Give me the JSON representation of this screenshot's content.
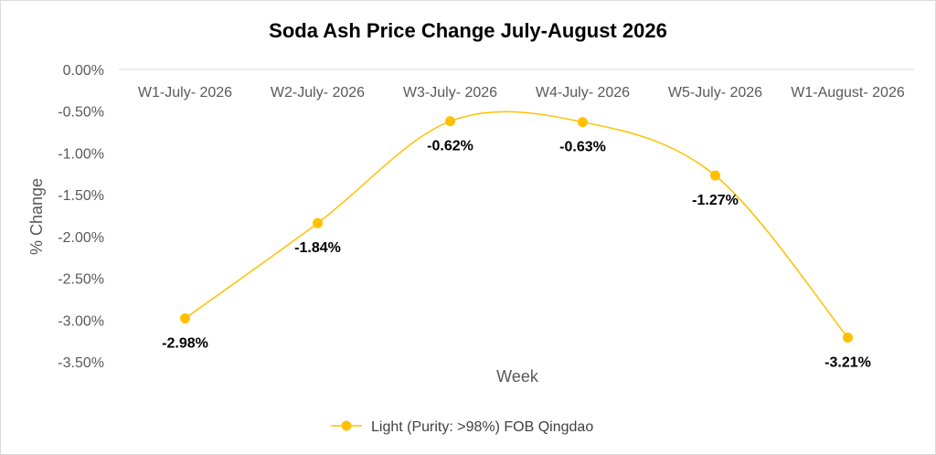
{
  "chart_data": {
    "type": "line",
    "title": "Soda Ash Price Change July-August 2026",
    "xlabel": "Week",
    "ylabel": "% Change",
    "categories": [
      "W1-July- 2026",
      "W2-July- 2026",
      "W3-July- 2026",
      "W4-July- 2026",
      "W5-July- 2026",
      "W1-August- 2026"
    ],
    "series": [
      {
        "name": "Light (Purity: >98%) FOB Qingdao",
        "values": [
          -2.98,
          -1.84,
          -0.62,
          -0.63,
          -1.27,
          -3.21
        ],
        "labels": [
          "-2.98%",
          "-1.84%",
          "-0.62%",
          "-0.63%",
          "-1.27%",
          "-3.21%"
        ],
        "color": "#FFC000",
        "smooth": true
      }
    ],
    "ylim": [
      -3.5,
      0
    ],
    "yticks": [
      0,
      -0.5,
      -1,
      -1.5,
      -2,
      -2.5,
      -3,
      -3.5
    ],
    "ytick_labels": [
      "0.00%",
      "-0.50%",
      "-1.00%",
      "-1.50%",
      "-2.00%",
      "-2.50%",
      "-3.00%",
      "-3.50%"
    ],
    "x_axis_position": "top",
    "grid": false,
    "legend_position": "bottom"
  }
}
